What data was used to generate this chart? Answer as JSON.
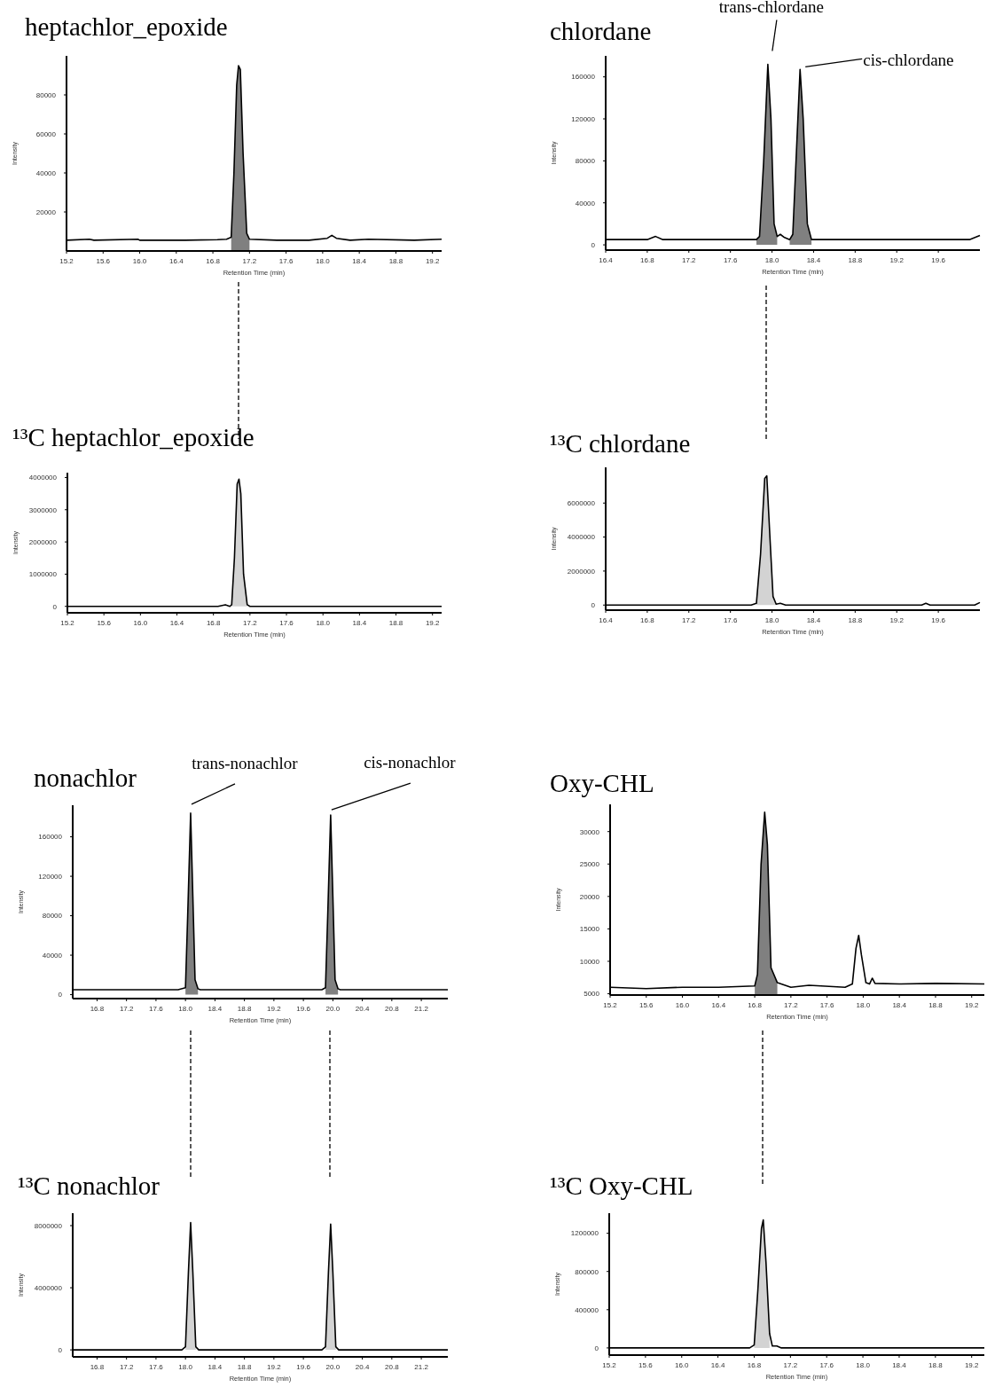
{
  "chart_data": [
    {
      "type": "line",
      "title": "heptachlor_epoxide",
      "xlabel": "Retention Time  (min)",
      "ylabel": "Intensity",
      "xlim": [
        15.2,
        19.3
      ],
      "xticks": [
        {
          "value": 15.2,
          "label": "15.2"
        },
        {
          "value": 15.6,
          "label": "15.6"
        },
        {
          "value": 16.0,
          "label": "16.0"
        },
        {
          "value": 16.4,
          "label": "16.4"
        },
        {
          "value": 16.8,
          "label": "16.8"
        },
        {
          "value": 17.2,
          "label": "17.2"
        },
        {
          "value": 17.6,
          "label": "17.6"
        },
        {
          "value": 18.0,
          "label": "18.0"
        },
        {
          "value": 18.4,
          "label": "18.4"
        },
        {
          "value": 18.8,
          "label": "18.8"
        },
        {
          "value": 19.2,
          "label": "19.2"
        }
      ],
      "ylim": [
        0,
        100000
      ],
      "yticks": [
        20000,
        40000,
        60000,
        80000
      ],
      "series": [
        {
          "type": "line",
          "color": "#000000",
          "x": [
            15.2,
            15.45,
            15.5,
            15.98,
            16.0,
            16.5,
            16.85,
            16.95,
            17.0,
            17.03,
            17.06,
            17.08,
            17.1,
            17.13,
            17.17,
            17.2,
            17.5,
            17.85,
            18.05,
            18.1,
            18.15,
            18.3,
            18.5,
            19.0,
            19.3
          ],
          "values": [
            5500,
            6000,
            5500,
            6000,
            5500,
            5500,
            5800,
            6000,
            7000,
            40000,
            85000,
            95000,
            93000,
            50000,
            9000,
            6000,
            5500,
            5500,
            6500,
            8000,
            6500,
            5500,
            6000,
            5500,
            6000
          ]
        },
        {
          "type": "area",
          "color": "#808080",
          "x": [
            17.0,
            17.03,
            17.06,
            17.08,
            17.1,
            17.13,
            17.17,
            17.2
          ],
          "values": [
            5500,
            40000,
            85000,
            95000,
            93000,
            50000,
            9000,
            5500
          ]
        }
      ]
    },
    {
      "type": "line",
      "title": "chlordane",
      "xlabel": "Retention Time  (min)",
      "ylabel": "Intensity",
      "xlim": [
        16.4,
        20.0
      ],
      "xticks": [
        16.4,
        16.8,
        17.2,
        17.6,
        {
          "value": 18.0,
          "label": "18.0"
        },
        18.4,
        18.8,
        19.2,
        19.6
      ],
      "ylim": [
        -5000,
        180000
      ],
      "yticks": [
        0,
        40000,
        80000,
        120000,
        160000
      ],
      "annotations": [
        {
          "text": "trans-chlordane",
          "x": 17.96,
          "y": 172000
        },
        {
          "text": "cis-chlordane",
          "x": 18.27,
          "y": 167000
        }
      ],
      "series": [
        {
          "type": "line",
          "color": "#000000",
          "x": [
            16.4,
            16.8,
            16.88,
            16.95,
            17.5,
            17.85,
            17.88,
            17.92,
            17.96,
            17.99,
            18.02,
            18.05,
            18.08,
            18.12,
            18.17,
            18.2,
            18.24,
            18.27,
            18.3,
            18.34,
            18.38,
            19.0,
            19.9,
            20.0
          ],
          "values": [
            5000,
            5000,
            8000,
            5000,
            5000,
            5000,
            8000,
            80000,
            172000,
            120000,
            20000,
            8000,
            10000,
            7000,
            5000,
            10000,
            100000,
            167000,
            120000,
            20000,
            5000,
            5000,
            5000,
            9000
          ]
        },
        {
          "type": "area",
          "color": "#808080",
          "x": [
            17.85,
            17.88,
            17.92,
            17.96,
            17.99,
            18.02,
            18.05
          ],
          "values": [
            5000,
            8000,
            80000,
            172000,
            120000,
            20000,
            8000
          ]
        },
        {
          "type": "area",
          "color": "#808080",
          "x": [
            18.17,
            18.2,
            18.24,
            18.27,
            18.3,
            18.34,
            18.38
          ],
          "values": [
            5000,
            10000,
            100000,
            167000,
            120000,
            20000,
            5000
          ]
        }
      ]
    },
    {
      "type": "line",
      "title": "¹³C heptachlor_epoxide",
      "xlabel": "Retention Time  (min)",
      "ylabel": "Intensity",
      "xlim": [
        15.2,
        19.3
      ],
      "xticks": [
        {
          "value": 15.2,
          "label": "15.2"
        },
        {
          "value": 15.6,
          "label": "15.6"
        },
        {
          "value": 16.0,
          "label": "16.0"
        },
        {
          "value": 16.4,
          "label": "16.4"
        },
        {
          "value": 16.8,
          "label": "16.8"
        },
        {
          "value": 17.2,
          "label": "17.2"
        },
        {
          "value": 17.6,
          "label": "17.6"
        },
        {
          "value": 18.0,
          "label": "18.0"
        },
        {
          "value": 18.4,
          "label": "18.4"
        },
        {
          "value": 18.8,
          "label": "18.8"
        },
        {
          "value": 19.2,
          "label": "19.2"
        }
      ],
      "ylim": [
        -200000,
        4150000
      ],
      "yticks": [
        0,
        1000000,
        2000000,
        3000000,
        4000000
      ],
      "series": [
        {
          "type": "line",
          "color": "#000000",
          "x": [
            15.2,
            16.85,
            16.93,
            16.98,
            17.0,
            17.03,
            17.06,
            17.08,
            17.1,
            17.13,
            17.17,
            17.2,
            19.3
          ],
          "values": [
            0,
            0,
            50000,
            0,
            50000,
            1500000,
            3800000,
            3950000,
            3500000,
            1000000,
            50000,
            0,
            0
          ]
        },
        {
          "type": "area",
          "color": "#d3d3d3",
          "x": [
            17.0,
            17.03,
            17.06,
            17.08,
            17.1,
            17.13,
            17.17
          ],
          "values": [
            50000,
            1500000,
            3800000,
            3950000,
            3500000,
            1000000,
            50000
          ]
        }
      ]
    },
    {
      "type": "line",
      "title": "¹³C chlordane",
      "xlabel": "Retention Time  (min)",
      "ylabel": "Intensity",
      "xlim": [
        16.4,
        20.0
      ],
      "xticks": [
        16.4,
        16.8,
        17.2,
        17.6,
        {
          "value": 18.0,
          "label": "18.0"
        },
        18.4,
        18.8,
        19.2,
        19.6
      ],
      "ylim": [
        -300000,
        8100000
      ],
      "yticks": [
        0,
        2000000,
        4000000,
        6000000
      ],
      "series": [
        {
          "type": "line",
          "color": "#000000",
          "x": [
            16.4,
            17.8,
            17.85,
            17.89,
            17.93,
            17.95,
            17.98,
            18.01,
            18.04,
            18.08,
            18.13,
            19.44,
            19.48,
            19.52,
            19.95,
            20.0
          ],
          "values": [
            0,
            0,
            100000,
            3000000,
            7450000,
            7600000,
            4000000,
            500000,
            50000,
            100000,
            0,
            0,
            100000,
            0,
            0,
            150000
          ]
        },
        {
          "type": "area",
          "color": "#d3d3d3",
          "x": [
            17.85,
            17.89,
            17.93,
            17.95,
            17.98,
            18.01,
            18.04
          ],
          "values": [
            100000,
            3000000,
            7450000,
            7600000,
            4000000,
            500000,
            50000
          ]
        }
      ]
    },
    {
      "type": "line",
      "title": "nonachlor",
      "xlabel": "Retention Time  (min)",
      "ylabel": "Intensity",
      "xlim": [
        16.47,
        21.56
      ],
      "xticks": [
        16.8,
        17.2,
        17.6,
        {
          "value": 18.0,
          "label": "18.0"
        },
        18.4,
        18.8,
        19.2,
        19.6,
        {
          "value": 20.0,
          "label": "20.0"
        },
        20.4,
        20.8,
        21.2
      ],
      "ylim": [
        -4000,
        192000
      ],
      "yticks": [
        0,
        40000,
        80000,
        120000,
        160000
      ],
      "annotations": [
        {
          "text": "trans-nonachlor",
          "x": 18.07,
          "y": 184000
        },
        {
          "text": "cis-nonachlor",
          "x": 19.97,
          "y": 182000
        }
      ],
      "series": [
        {
          "type": "line",
          "color": "#000000",
          "x": [
            16.47,
            17.9,
            18.0,
            18.03,
            18.07,
            18.1,
            18.13,
            18.17,
            18.2,
            19.85,
            19.9,
            19.93,
            19.97,
            20.0,
            20.03,
            20.07,
            20.1,
            21.56
          ],
          "values": [
            5000,
            5000,
            7000,
            80000,
            184000,
            100000,
            15000,
            6000,
            5000,
            5000,
            7000,
            80000,
            182000,
            100000,
            15000,
            6000,
            5000,
            5000
          ]
        },
        {
          "type": "area",
          "color": "#808080",
          "x": [
            18.0,
            18.03,
            18.07,
            18.1,
            18.13,
            18.17
          ],
          "values": [
            7000,
            80000,
            184000,
            100000,
            15000,
            6000
          ]
        },
        {
          "type": "area",
          "color": "#808080",
          "x": [
            19.9,
            19.93,
            19.97,
            20.0,
            20.03,
            20.07
          ],
          "values": [
            7000,
            80000,
            182000,
            100000,
            15000,
            6000
          ]
        }
      ]
    },
    {
      "type": "line",
      "title": "Oxy-CHL",
      "xlabel": "Retention Time  (min)",
      "ylabel": "Intensity",
      "xlim": [
        15.2,
        19.34
      ],
      "xticks": [
        {
          "value": 15.2,
          "label": "15.2"
        },
        {
          "value": 15.6,
          "label": "15.6"
        },
        {
          "value": 16.0,
          "label": "16.0"
        },
        {
          "value": 16.4,
          "label": "16.4"
        },
        {
          "value": 16.8,
          "label": "16.8"
        },
        {
          "value": 17.2,
          "label": "17.2"
        },
        {
          "value": 17.6,
          "label": "17.6"
        },
        {
          "value": 18.0,
          "label": "18.0"
        },
        {
          "value": 18.4,
          "label": "18.4"
        },
        {
          "value": 18.8,
          "label": "18.8"
        },
        {
          "value": 19.2,
          "label": "19.2"
        }
      ],
      "ylim": [
        4800,
        34200
      ],
      "yticks": [
        5000,
        10000,
        15000,
        20000,
        25000,
        30000
      ],
      "series": [
        {
          "type": "line",
          "color": "#000000",
          "x": [
            15.2,
            15.6,
            16.0,
            16.4,
            16.8,
            16.83,
            16.87,
            16.91,
            16.94,
            16.98,
            17.05,
            17.2,
            17.4,
            17.8,
            17.88,
            17.92,
            17.95,
            17.98,
            18.03,
            18.07,
            18.1,
            18.13,
            18.4,
            18.8,
            19.34
          ],
          "values": [
            6000,
            5800,
            6000,
            6000,
            6200,
            8000,
            25000,
            33000,
            28000,
            9000,
            6700,
            6000,
            6300,
            6000,
            6500,
            12000,
            14000,
            11000,
            6700,
            6500,
            7400,
            6600,
            6500,
            6600,
            6500
          ]
        },
        {
          "type": "area",
          "color": "#808080",
          "x": [
            16.8,
            16.83,
            16.87,
            16.91,
            16.94,
            16.98,
            17.05
          ],
          "values": [
            6200,
            8000,
            25000,
            33000,
            28000,
            9000,
            6700
          ]
        }
      ]
    },
    {
      "type": "line",
      "title": "¹³C nonachlor",
      "xlabel": "Retention Time  (min)",
      "ylabel": "Intensity",
      "xlim": [
        16.47,
        21.56
      ],
      "xticks": [
        16.8,
        17.2,
        17.6,
        {
          "value": 18.0,
          "label": "18.0"
        },
        18.4,
        18.8,
        19.2,
        19.6,
        {
          "value": 20.0,
          "label": "20.0"
        },
        20.4,
        20.8,
        21.2
      ],
      "ylim": [
        -450000,
        8800000
      ],
      "yticks": [
        0,
        4000000,
        8000000
      ],
      "series": [
        {
          "type": "line",
          "color": "#000000",
          "x": [
            16.47,
            17.95,
            18.0,
            18.04,
            18.07,
            18.1,
            18.14,
            18.18,
            19.85,
            19.9,
            19.94,
            19.97,
            20.0,
            20.04,
            20.08,
            21.56
          ],
          "values": [
            0,
            0,
            200000,
            5000000,
            8200000,
            5000000,
            200000,
            0,
            0,
            200000,
            5000000,
            8100000,
            5000000,
            200000,
            0,
            0
          ]
        },
        {
          "type": "area",
          "color": "#d3d3d3",
          "x": [
            18.0,
            18.04,
            18.07,
            18.1,
            18.14
          ],
          "values": [
            200000,
            5000000,
            8200000,
            5000000,
            200000
          ]
        },
        {
          "type": "area",
          "color": "#d3d3d3",
          "x": [
            19.9,
            19.94,
            19.97,
            20.0,
            20.04
          ],
          "values": [
            200000,
            5000000,
            8100000,
            5000000,
            200000
          ]
        }
      ]
    },
    {
      "type": "line",
      "title": "¹³C Oxy-CHL",
      "xlabel": "Retention Time  (min)",
      "ylabel": "Intensity",
      "xlim": [
        15.2,
        19.34
      ],
      "xticks": [
        {
          "value": 15.2,
          "label": "15.2"
        },
        {
          "value": 15.6,
          "label": "15.6"
        },
        {
          "value": 16.0,
          "label": "16.0"
        },
        {
          "value": 16.4,
          "label": "16.4"
        },
        {
          "value": 16.8,
          "label": "16.8"
        },
        {
          "value": 17.2,
          "label": "17.2"
        },
        {
          "value": 17.6,
          "label": "17.6"
        },
        {
          "value": 18.0,
          "label": "18.0"
        },
        {
          "value": 18.4,
          "label": "18.4"
        },
        {
          "value": 18.8,
          "label": "18.8"
        },
        {
          "value": 19.2,
          "label": "19.2"
        }
      ],
      "ylim": [
        -75000,
        1410000
      ],
      "yticks": [
        0,
        400000,
        800000,
        1200000
      ],
      "series": [
        {
          "type": "line",
          "color": "#000000",
          "x": [
            15.2,
            16.75,
            16.8,
            16.84,
            16.88,
            16.9,
            16.93,
            16.97,
            17.0,
            17.05,
            17.1,
            19.34
          ],
          "values": [
            0,
            0,
            30000,
            600000,
            1250000,
            1340000,
            900000,
            150000,
            20000,
            20000,
            0,
            0
          ]
        },
        {
          "type": "area",
          "color": "#d3d3d3",
          "x": [
            16.8,
            16.84,
            16.88,
            16.9,
            16.93,
            16.97
          ],
          "values": [
            30000,
            600000,
            1250000,
            1340000,
            900000,
            150000
          ]
        }
      ]
    }
  ]
}
